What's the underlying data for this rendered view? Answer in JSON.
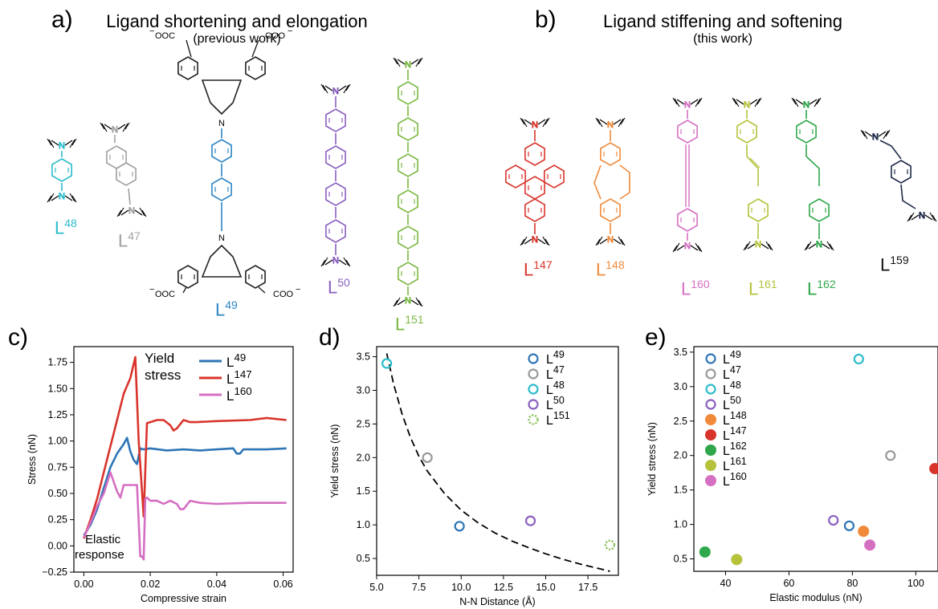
{
  "panel_a": {
    "letter": "a)",
    "title": "Ligand shortening and elongation",
    "subtitle": "(previous work)"
  },
  "panel_b": {
    "letter": "b)",
    "title": "Ligand stiffening and softening",
    "subtitle": "(this work)"
  },
  "panel_c_letter": "c)",
  "panel_d_letter": "d)",
  "panel_e_letter": "e)",
  "molecule_text": {
    "n": "N",
    "cooneg": "COO",
    "ooc": "OOC",
    "neg": "−"
  },
  "ligands": [
    {
      "id": "L48",
      "base": "L",
      "num": "48",
      "color": "#2bbccb"
    },
    {
      "id": "L47",
      "base": "L",
      "num": "47",
      "color": "#a0a0a0"
    },
    {
      "id": "L49",
      "base": "L",
      "num": "49",
      "color": "#2e85c4"
    },
    {
      "id": "L50",
      "base": "L",
      "num": "50",
      "color": "#8a5fc0"
    },
    {
      "id": "L151",
      "base": "L",
      "num": "151",
      "color": "#7ab842"
    },
    {
      "id": "L147",
      "base": "L",
      "num": "147",
      "color": "#d9342c"
    },
    {
      "id": "L148",
      "base": "L",
      "num": "148",
      "color": "#f08a3a"
    },
    {
      "id": "L160",
      "base": "L",
      "num": "160",
      "color": "#d56fc2"
    },
    {
      "id": "L161",
      "base": "L",
      "num": "161",
      "color": "#b5c23a"
    },
    {
      "id": "L162",
      "base": "L",
      "num": "162",
      "color": "#2fa74a"
    },
    {
      "id": "L159",
      "base": "L",
      "num": "159",
      "color": "#111111"
    }
  ],
  "chart_data": [
    {
      "panel": "c",
      "type": "line",
      "xlabel": "Compressive strain",
      "ylabel": "Stress (nN)",
      "xlim": [
        -0.003,
        0.063
      ],
      "ylim": [
        -0.25,
        1.9
      ],
      "xticks": [
        "0.00",
        "0.02",
        "0.04",
        "0.06"
      ],
      "xtick_values": [
        0,
        0.02,
        0.04,
        0.06
      ],
      "yticks": [
        "−0.25",
        "0.00",
        "0.25",
        "0.50",
        "0.75",
        "1.00",
        "1.25",
        "1.50",
        "1.75"
      ],
      "ytick_values": [
        -0.25,
        0,
        0.25,
        0.5,
        0.75,
        1.0,
        1.25,
        1.5,
        1.75
      ],
      "annotations": [
        "Yield",
        "stress",
        "Elastic",
        "response"
      ],
      "legend_position": "top-right",
      "series": [
        {
          "name_base": "L",
          "name_num": "49",
          "color": "#2e75b6",
          "x": [
            0,
            0.002,
            0.004,
            0.006,
            0.008,
            0.01,
            0.012,
            0.013,
            0.014,
            0.015,
            0.016,
            0.017,
            0.018,
            0.02,
            0.025,
            0.03,
            0.035,
            0.04,
            0.045,
            0.046,
            0.047,
            0.048,
            0.05,
            0.055,
            0.061
          ],
          "y": [
            0.1,
            0.2,
            0.35,
            0.55,
            0.75,
            0.88,
            0.97,
            1.03,
            0.9,
            0.82,
            0.78,
            0.93,
            0.92,
            0.93,
            0.91,
            0.92,
            0.91,
            0.92,
            0.93,
            0.88,
            0.88,
            0.92,
            0.92,
            0.92,
            0.93
          ]
        },
        {
          "name_base": "L",
          "name_num": "147",
          "color": "#d9342c",
          "x": [
            0,
            0.002,
            0.004,
            0.006,
            0.008,
            0.01,
            0.012,
            0.014,
            0.0155,
            0.0165,
            0.018,
            0.019,
            0.02,
            0.022,
            0.024,
            0.026,
            0.027,
            0.028,
            0.03,
            0.032,
            0.034,
            0.04,
            0.05,
            0.055,
            0.061
          ],
          "y": [
            0.07,
            0.25,
            0.45,
            0.7,
            0.95,
            1.2,
            1.45,
            1.6,
            1.8,
            1.0,
            0.28,
            1.17,
            1.18,
            1.2,
            1.2,
            1.15,
            1.1,
            1.12,
            1.2,
            1.18,
            1.18,
            1.19,
            1.2,
            1.22,
            1.2
          ]
        },
        {
          "name_base": "L",
          "name_num": "160",
          "color": "#d56fc2",
          "x": [
            0,
            0.002,
            0.004,
            0.006,
            0.008,
            0.01,
            0.011,
            0.012,
            0.014,
            0.016,
            0.017,
            0.0175,
            0.018,
            0.0185,
            0.019,
            0.02,
            0.022,
            0.024,
            0.026,
            0.028,
            0.029,
            0.03,
            0.032,
            0.035,
            0.04,
            0.05,
            0.061
          ],
          "y": [
            0.08,
            0.22,
            0.38,
            0.5,
            0.7,
            0.52,
            0.46,
            0.58,
            0.58,
            0.58,
            -0.1,
            -0.1,
            -0.13,
            0.45,
            0.46,
            0.43,
            0.43,
            0.4,
            0.43,
            0.4,
            0.35,
            0.35,
            0.43,
            0.41,
            0.4,
            0.41,
            0.41
          ]
        }
      ]
    },
    {
      "panel": "d",
      "type": "scatter",
      "xlabel": "N-N Distance  (Å)",
      "ylabel": "Yield stress (nN)",
      "xlim": [
        5.0,
        19.3
      ],
      "ylim": [
        0.25,
        3.65
      ],
      "xticks": [
        "5.0",
        "7.5",
        "10.0",
        "12.5",
        "15.0",
        "17.5"
      ],
      "xtick_values": [
        5.0,
        7.5,
        10.0,
        12.5,
        15.0,
        17.5
      ],
      "yticks": [
        "0.5",
        "1.0",
        "1.5",
        "2.0",
        "2.5",
        "3.0",
        "3.5"
      ],
      "ytick_values": [
        0.5,
        1.0,
        1.5,
        2.0,
        2.5,
        3.0,
        3.5
      ],
      "legend_position": "top-right",
      "fit": {
        "style": "dashed",
        "x": [
          5.6,
          6.0,
          6.5,
          7.0,
          7.5,
          8.0,
          9.0,
          10.0,
          11.0,
          12.0,
          13.0,
          14.0,
          15.0,
          16.0,
          17.0,
          18.0,
          18.8
        ],
        "y": [
          3.55,
          3.1,
          2.65,
          2.3,
          2.02,
          1.8,
          1.47,
          1.22,
          1.03,
          0.88,
          0.76,
          0.66,
          0.57,
          0.49,
          0.42,
          0.36,
          0.31
        ]
      },
      "points": [
        {
          "name_base": "L",
          "name_num": "49",
          "x": 9.9,
          "y": 0.98,
          "color": "#2e75b6",
          "style": "open"
        },
        {
          "name_base": "L",
          "name_num": "47",
          "x": 8.0,
          "y": 2.0,
          "color": "#999999",
          "style": "open"
        },
        {
          "name_base": "L",
          "name_num": "48",
          "x": 5.6,
          "y": 3.4,
          "color": "#2bbccb",
          "style": "open"
        },
        {
          "name_base": "L",
          "name_num": "50",
          "x": 14.1,
          "y": 1.06,
          "color": "#8a5fc0",
          "style": "open"
        },
        {
          "name_base": "L",
          "name_num": "151",
          "x": 18.8,
          "y": 0.7,
          "color": "#7ab842",
          "style": "dotted"
        }
      ]
    },
    {
      "panel": "e",
      "type": "scatter",
      "xlabel": "Elastic modulus (nN)",
      "ylabel": "Yield stress (nN)",
      "xlim": [
        30,
        107
      ],
      "ylim": [
        0.32,
        3.58
      ],
      "xticks": [
        "40",
        "60",
        "80",
        "100"
      ],
      "xtick_values": [
        40,
        60,
        80,
        100
      ],
      "yticks": [
        "0.5",
        "1.0",
        "1.5",
        "2.0",
        "2.5",
        "3.0",
        "3.5"
      ],
      "ytick_values": [
        0.5,
        1.0,
        1.5,
        2.0,
        2.5,
        3.0,
        3.5
      ],
      "legend_position": "top-left",
      "points": [
        {
          "name_base": "L",
          "name_num": "49",
          "x": 79,
          "y": 0.98,
          "color": "#2e75b6",
          "style": "open"
        },
        {
          "name_base": "L",
          "name_num": "47",
          "x": 92,
          "y": 2.0,
          "color": "#999999",
          "style": "open"
        },
        {
          "name_base": "L",
          "name_num": "48",
          "x": 82,
          "y": 3.4,
          "color": "#2bbccb",
          "style": "open"
        },
        {
          "name_base": "L",
          "name_num": "50",
          "x": 74,
          "y": 1.06,
          "color": "#8a5fc0",
          "style": "open"
        },
        {
          "name_base": "L",
          "name_num": "148",
          "x": 83.5,
          "y": 0.9,
          "color": "#f08a3a",
          "style": "filled"
        },
        {
          "name_base": "L",
          "name_num": "147",
          "x": 106,
          "y": 1.81,
          "color": "#d9342c",
          "style": "filled"
        },
        {
          "name_base": "L",
          "name_num": "162",
          "x": 33.5,
          "y": 0.6,
          "color": "#2fa74a",
          "style": "filled"
        },
        {
          "name_base": "L",
          "name_num": "161",
          "x": 43.5,
          "y": 0.49,
          "color": "#b5c23a",
          "style": "filled"
        },
        {
          "name_base": "L",
          "name_num": "160",
          "x": 85.5,
          "y": 0.7,
          "color": "#d56fc2",
          "style": "filled"
        }
      ]
    }
  ]
}
